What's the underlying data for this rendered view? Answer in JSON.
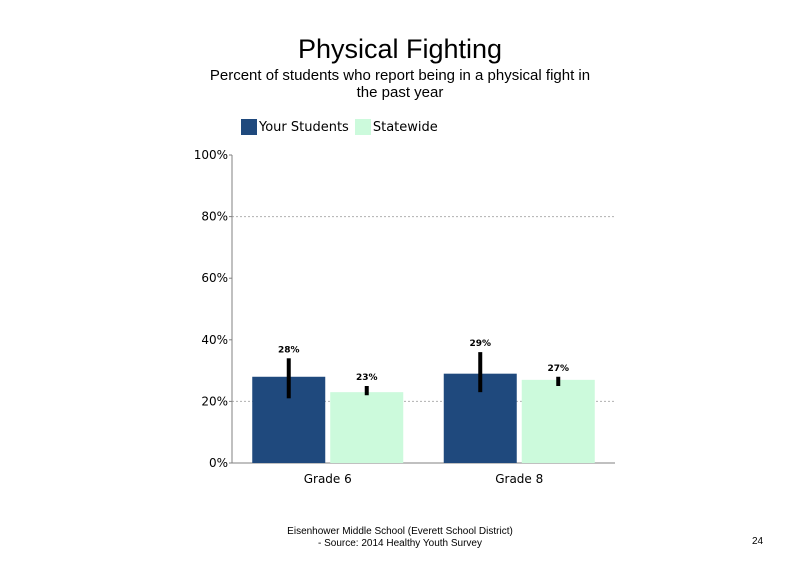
{
  "chart_data": {
    "type": "bar",
    "title": "Physical Fighting",
    "subtitle": "Percent of students who report being in a physical fight in the past year",
    "categories": [
      "Grade 6",
      "Grade 8"
    ],
    "series": [
      {
        "name": "Your Students",
        "values": [
          28,
          29
        ],
        "labels": [
          "28%",
          "29%"
        ],
        "error_low": [
          21,
          23
        ],
        "error_high": [
          34,
          36
        ],
        "color": "#1f497d"
      },
      {
        "name": "Statewide",
        "values": [
          23,
          27
        ],
        "labels": [
          "23%",
          "27%"
        ],
        "error_low": [
          22,
          25
        ],
        "error_high": [
          25,
          28
        ],
        "color": "#ccfadc"
      }
    ],
    "yticks": [
      "0%",
      "20%",
      "40%",
      "60%",
      "80%",
      "100%"
    ],
    "ylim": [
      0,
      100
    ],
    "grid": "dashed horizontal at 20% and 80%",
    "legend_position": "top-left"
  },
  "footer": {
    "line1": "Eisenhower Middle School (Everett School District)",
    "line2": "- Source: 2014 Healthy Youth Survey"
  },
  "page_number": "24"
}
